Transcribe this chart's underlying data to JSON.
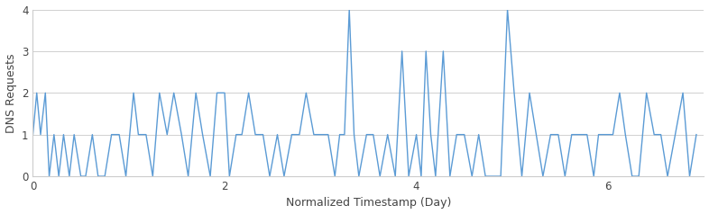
{
  "title": "",
  "xlabel": "Normalized Timestamp (Day)",
  "ylabel": "DNS Requests",
  "line_color": "#5B9BD5",
  "background_color": "#ffffff",
  "grid_color": "#d0d0d0",
  "ylim": [
    0,
    4
  ],
  "xlim": [
    0,
    7
  ],
  "xticks": [
    0,
    2,
    4,
    6
  ],
  "yticks": [
    0,
    1,
    2,
    3,
    4
  ],
  "x": [
    0.0,
    0.04,
    0.08,
    0.13,
    0.17,
    0.22,
    0.27,
    0.32,
    0.38,
    0.43,
    0.5,
    0.55,
    0.62,
    0.68,
    0.75,
    0.82,
    0.9,
    0.97,
    1.05,
    1.1,
    1.18,
    1.25,
    1.32,
    1.4,
    1.47,
    1.55,
    1.62,
    1.7,
    1.77,
    1.85,
    1.92,
    2.0,
    2.05,
    2.12,
    2.18,
    2.25,
    2.32,
    2.4,
    2.47,
    2.55,
    2.62,
    2.7,
    2.78,
    2.85,
    2.93,
    3.0,
    3.08,
    3.15,
    3.2,
    3.25,
    3.3,
    3.35,
    3.4,
    3.48,
    3.55,
    3.62,
    3.7,
    3.78,
    3.85,
    3.92,
    4.0,
    4.05,
    4.1,
    4.15,
    4.2,
    4.28,
    4.35,
    4.42,
    4.5,
    4.58,
    4.65,
    4.72,
    4.8,
    4.88,
    4.95,
    5.02,
    5.1,
    5.18,
    5.25,
    5.32,
    5.4,
    5.48,
    5.55,
    5.62,
    5.7,
    5.78,
    5.85,
    5.9,
    5.95,
    6.0,
    6.05,
    6.12,
    6.18,
    6.25,
    6.32,
    6.4,
    6.48,
    6.55,
    6.62,
    6.7,
    6.78,
    6.85,
    6.92
  ],
  "y": [
    1,
    2,
    1,
    2,
    0,
    1,
    0,
    1,
    0,
    1,
    0,
    0,
    1,
    0,
    0,
    1,
    1,
    0,
    2,
    1,
    1,
    0,
    2,
    1,
    2,
    1,
    0,
    2,
    1,
    0,
    2,
    2,
    0,
    1,
    1,
    2,
    1,
    1,
    0,
    1,
    0,
    1,
    1,
    2,
    1,
    1,
    1,
    0,
    1,
    1,
    4,
    1,
    0,
    1,
    1,
    0,
    1,
    0,
    3,
    0,
    1,
    0,
    3,
    1,
    0,
    3,
    0,
    1,
    1,
    0,
    1,
    0,
    0,
    0,
    4,
    2,
    0,
    2,
    1,
    0,
    1,
    1,
    0,
    1,
    1,
    1,
    0,
    1,
    1,
    1,
    1,
    2,
    1,
    0,
    0,
    2,
    1,
    1,
    0,
    1,
    2,
    0,
    1
  ]
}
